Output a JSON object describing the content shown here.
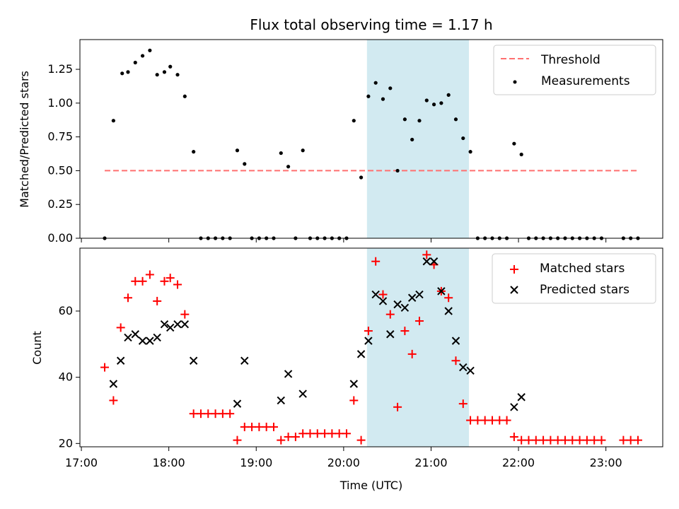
{
  "title": "Flux total observing time = 1.17 h",
  "colors": {
    "threshold": "#ff7070",
    "measurement": "#000000",
    "matched": "#ff0000",
    "predicted": "#000000",
    "shade": "#add8e6"
  },
  "chart_data": [
    {
      "type": "scatter",
      "ylabel": "Matched/Predicted stars",
      "ylim": [
        0,
        1.47
      ],
      "yticks": [
        "0.00",
        "0.25",
        "0.50",
        "0.75",
        "1.00",
        "1.25"
      ],
      "yticks_values": [
        0,
        0.25,
        0.5,
        0.75,
        1.0,
        1.25
      ],
      "legend": {
        "position": "top-right",
        "entries": [
          "Threshold",
          "Measurements"
        ]
      },
      "threshold": {
        "value": 0.5,
        "x_from": "17:16",
        "x_to": "23:23"
      },
      "shaded_interval": {
        "from": "20:16",
        "to": "21:26"
      },
      "series": [
        {
          "name": "Measurements",
          "x": [
            "17:16",
            "17:22",
            "17:28",
            "17:32",
            "17:37",
            "17:42",
            "17:47",
            "17:52",
            "17:57",
            "18:01",
            "18:06",
            "18:11",
            "18:17",
            "18:22",
            "18:27",
            "18:32",
            "18:37",
            "18:42",
            "18:47",
            "18:52",
            "18:57",
            "19:02",
            "19:07",
            "19:12",
            "19:17",
            "19:22",
            "19:27",
            "19:32",
            "19:37",
            "19:42",
            "19:47",
            "19:52",
            "19:57",
            "20:02",
            "20:07",
            "20:12",
            "20:17",
            "20:22",
            "20:27",
            "20:32",
            "20:37",
            "20:42",
            "20:47",
            "20:52",
            "20:57",
            "21:02",
            "21:07",
            "21:12",
            "21:17",
            "21:22",
            "21:27",
            "21:32",
            "21:37",
            "21:42",
            "21:47",
            "21:52",
            "21:57",
            "22:02",
            "22:07",
            "22:12",
            "22:17",
            "22:22",
            "22:27",
            "22:32",
            "22:37",
            "22:42",
            "22:47",
            "22:52",
            "22:57",
            "23:12",
            "23:17",
            "23:22"
          ],
          "y": [
            0.0,
            0.87,
            1.22,
            1.23,
            1.3,
            1.35,
            1.39,
            1.21,
            1.23,
            1.27,
            1.21,
            1.05,
            0.64,
            0.0,
            0.0,
            0.0,
            0.0,
            0.0,
            0.65,
            0.55,
            0.0,
            0.0,
            0.0,
            0.0,
            0.63,
            0.53,
            0.0,
            0.65,
            0.0,
            0.0,
            0.0,
            0.0,
            0.0,
            0.0,
            0.87,
            0.45,
            1.05,
            1.15,
            1.03,
            1.11,
            0.5,
            0.88,
            0.73,
            0.87,
            1.02,
            0.99,
            1.0,
            1.06,
            0.88,
            0.74,
            0.64,
            0.0,
            0.0,
            0.0,
            0.0,
            0.0,
            0.7,
            0.62,
            0.0,
            0.0,
            0.0,
            0.0,
            0.0,
            0.0,
            0.0,
            0.0,
            0.0,
            0.0,
            0.0,
            0.0,
            0.0,
            0.0
          ]
        }
      ]
    },
    {
      "type": "scatter",
      "xlabel": "Time (UTC)",
      "ylabel": "Count",
      "xlim": [
        "16:59",
        "23:39"
      ],
      "ylim": [
        19,
        79
      ],
      "xticks": [
        "17:00",
        "18:00",
        "19:00",
        "20:00",
        "21:00",
        "22:00",
        "23:00"
      ],
      "yticks": [
        "20",
        "40",
        "60"
      ],
      "yticks_values": [
        20,
        40,
        60
      ],
      "legend": {
        "position": "top-right",
        "entries": [
          "Matched stars",
          "Predicted stars"
        ]
      },
      "shaded_interval": {
        "from": "20:16",
        "to": "21:26"
      },
      "series": [
        {
          "name": "Matched stars",
          "x": [
            "17:16",
            "17:22",
            "17:27",
            "17:32",
            "17:37",
            "17:42",
            "17:47",
            "17:52",
            "17:57",
            "18:01",
            "18:06",
            "18:11",
            "18:17",
            "18:22",
            "18:27",
            "18:32",
            "18:37",
            "18:42",
            "18:47",
            "18:52",
            "18:57",
            "19:02",
            "19:07",
            "19:12",
            "19:17",
            "19:22",
            "19:27",
            "19:32",
            "19:37",
            "19:42",
            "19:47",
            "19:52",
            "19:57",
            "20:02",
            "20:07",
            "20:12",
            "20:17",
            "20:22",
            "20:27",
            "20:32",
            "20:37",
            "20:42",
            "20:47",
            "20:52",
            "20:57",
            "21:02",
            "21:07",
            "21:12",
            "21:17",
            "21:22",
            "21:27",
            "21:32",
            "21:37",
            "21:42",
            "21:47",
            "21:52",
            "21:57",
            "22:02",
            "22:07",
            "22:12",
            "22:17",
            "22:22",
            "22:27",
            "22:32",
            "22:37",
            "22:42",
            "22:47",
            "22:52",
            "22:57",
            "23:12",
            "23:17",
            "23:22"
          ],
          "y": [
            43,
            33,
            55,
            64,
            69,
            69,
            71,
            63,
            69,
            70,
            68,
            59,
            29,
            29,
            29,
            29,
            29,
            29,
            21,
            25,
            25,
            25,
            25,
            25,
            21,
            22,
            22,
            23,
            23,
            23,
            23,
            23,
            23,
            23,
            33,
            21,
            54,
            75,
            65,
            59,
            31,
            54,
            47,
            57,
            77,
            74,
            66,
            64,
            45,
            32,
            27,
            27,
            27,
            27,
            27,
            27,
            22,
            21,
            21,
            21,
            21,
            21,
            21,
            21,
            21,
            21,
            21,
            21,
            21,
            21,
            21,
            21
          ]
        },
        {
          "name": "Predicted stars",
          "x": [
            "17:22",
            "17:27",
            "17:32",
            "17:37",
            "17:42",
            "17:47",
            "17:52",
            "17:57",
            "18:01",
            "18:06",
            "18:11",
            "18:17",
            "18:47",
            "18:52",
            "19:17",
            "19:22",
            "19:32",
            "20:07",
            "20:12",
            "20:17",
            "20:22",
            "20:27",
            "20:32",
            "20:37",
            "20:42",
            "20:47",
            "20:52",
            "20:57",
            "21:02",
            "21:07",
            "21:12",
            "21:17",
            "21:22",
            "21:27",
            "21:57",
            "22:02"
          ],
          "y": [
            38,
            45,
            52,
            53,
            51,
            51,
            52,
            56,
            55,
            56,
            56,
            45,
            32,
            45,
            33,
            41,
            35,
            38,
            47,
            51,
            65,
            63,
            53,
            62,
            61,
            64,
            65,
            75,
            75,
            66,
            60,
            51,
            43,
            42,
            31,
            34
          ]
        }
      ]
    }
  ]
}
